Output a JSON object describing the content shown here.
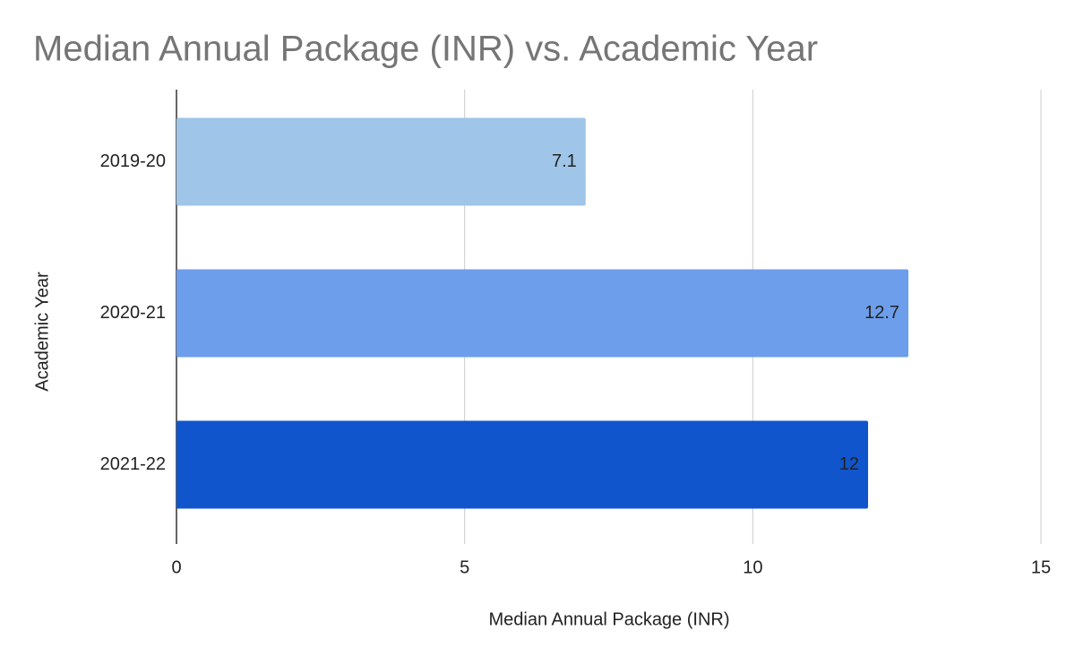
{
  "chart_data": {
    "type": "bar",
    "orientation": "horizontal",
    "title": "Median Annual Package (INR) vs. Academic Year",
    "x_label": "Median Annual Package (INR)",
    "y_label": "Academic Year",
    "categories": [
      "2019-20",
      "2020-21",
      "2021-22"
    ],
    "values": [
      7.1,
      12.7,
      12
    ],
    "colors": [
      "#9fc5e8",
      "#6d9eeb",
      "#1155cc"
    ],
    "xlim": [
      0,
      15
    ],
    "xticks": [
      0,
      5,
      10,
      15
    ],
    "grid": true
  }
}
